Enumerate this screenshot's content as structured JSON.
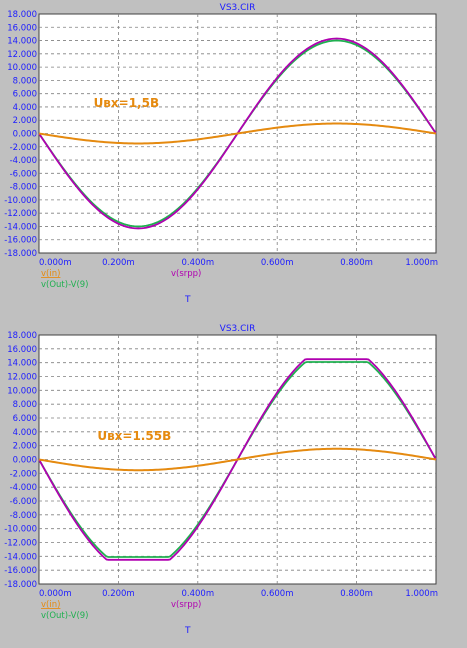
{
  "colors": {
    "background": "#c0c0c0",
    "plot_bg": "#ffffff",
    "grid": "#808080",
    "axis_text": "#1c1cff",
    "title_text": "#1c1cff",
    "vin": "#e58a10",
    "vout": "#20b050",
    "vsrpp": "#b000b0"
  },
  "chart_data": [
    {
      "type": "line",
      "title": "VS3.CIR",
      "xlabel": "T",
      "x_ticks": [
        "0.000m",
        "0.200m",
        "0.400m",
        "0.600m",
        "0.800m",
        "1.000m"
      ],
      "y_ticks": [
        "18.000",
        "16.000",
        "14.000",
        "12.000",
        "10.000",
        "8.000",
        "6.000",
        "4.000",
        "2.000",
        "0.000",
        "-2.000",
        "-4.000",
        "-6.000",
        "-8.000",
        "-10.000",
        "-12.000",
        "-14.000",
        "-16.000",
        "-18.000"
      ],
      "xlim": [
        0,
        1.0
      ],
      "ylim": [
        -18,
        18
      ],
      "grid": true,
      "annotation": "Uвх=1,5В",
      "annotation_at": {
        "x": 0.22,
        "y": 4.0
      },
      "legend": {
        "vin": "v(in)",
        "vsrpp": "v(srpp)",
        "vout": "v(Out)-V(9)"
      },
      "series": [
        {
          "name": "v(in)",
          "amplitude": 1.5,
          "clip": null,
          "color_key": "vin"
        },
        {
          "name": "v(srpp)",
          "amplitude": 14.3,
          "clip": null,
          "color_key": "vsrpp"
        },
        {
          "name": "v(Out)-V(9)",
          "amplitude": 14.0,
          "clip": null,
          "color_key": "vout"
        }
      ]
    },
    {
      "type": "line",
      "title": "VS3.CIR",
      "xlabel": "T",
      "x_ticks": [
        "0.000m",
        "0.200m",
        "0.400m",
        "0.600m",
        "0.800m",
        "1.000m"
      ],
      "y_ticks": [
        "18.000",
        "16.000",
        "14.000",
        "12.000",
        "10.000",
        "8.000",
        "6.000",
        "4.000",
        "2.000",
        "0.000",
        "-2.000",
        "-4.000",
        "-6.000",
        "-8.000",
        "-10.000",
        "-12.000",
        "-14.000",
        "-16.000",
        "-18.000"
      ],
      "xlim": [
        0,
        1.0
      ],
      "ylim": [
        -18,
        18
      ],
      "grid": true,
      "annotation": "Uвх=1.55В",
      "annotation_at": {
        "x": 0.24,
        "y": 2.8
      },
      "legend": {
        "vin": "v(in)",
        "vsrpp": "v(srpp)",
        "vout": "v(Out)-V(9)"
      },
      "series": [
        {
          "name": "v(in)",
          "amplitude": 1.55,
          "clip": null,
          "color_key": "vin"
        },
        {
          "name": "v(srpp)",
          "amplitude": 16.5,
          "clip": 14.5,
          "color_key": "vsrpp"
        },
        {
          "name": "v(Out)-V(9)",
          "amplitude": 16.0,
          "clip": 14.1,
          "color_key": "vout"
        }
      ]
    }
  ]
}
